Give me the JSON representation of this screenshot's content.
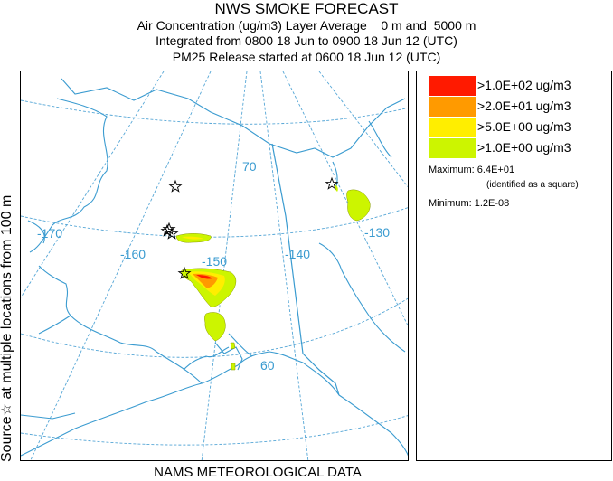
{
  "title": {
    "line1": "NWS SMOKE FORECAST",
    "line2": "Air Concentration (ug/m3) Layer Average    0 m and  5000 m",
    "line3": "Integrated from 0800 18 Jun to 0900 18 Jun 12 (UTC)",
    "line4": "PM25 Release started at 0600 18 Jun 12 (UTC)"
  },
  "side_label": "Source☆ at multiple locations   from  100 m",
  "footer": "NAMS METEOROLOGICAL DATA",
  "map": {
    "graticule_labels": [
      "-170",
      "-160",
      "-150",
      "-140",
      "-130",
      "70",
      "60"
    ],
    "colors": {
      "land_outline": "#3a9bd0",
      "graticule": "#55a6d6"
    }
  },
  "legend": {
    "items": [
      {
        "label": ">1.0E+02 ug/m3",
        "color": "#ff1a00"
      },
      {
        "label": ">2.0E+01 ug/m3",
        "color": "#ff9a00"
      },
      {
        "label": ">5.0E+00 ug/m3",
        "color": "#ffee00"
      },
      {
        "label": ">1.0E+00 ug/m3",
        "color": "#ccf500"
      }
    ],
    "maximum": "Maximum: 6.4E+01",
    "maximum_note": "(identified as a square)",
    "minimum": "Minimum: 1.2E-08"
  }
}
